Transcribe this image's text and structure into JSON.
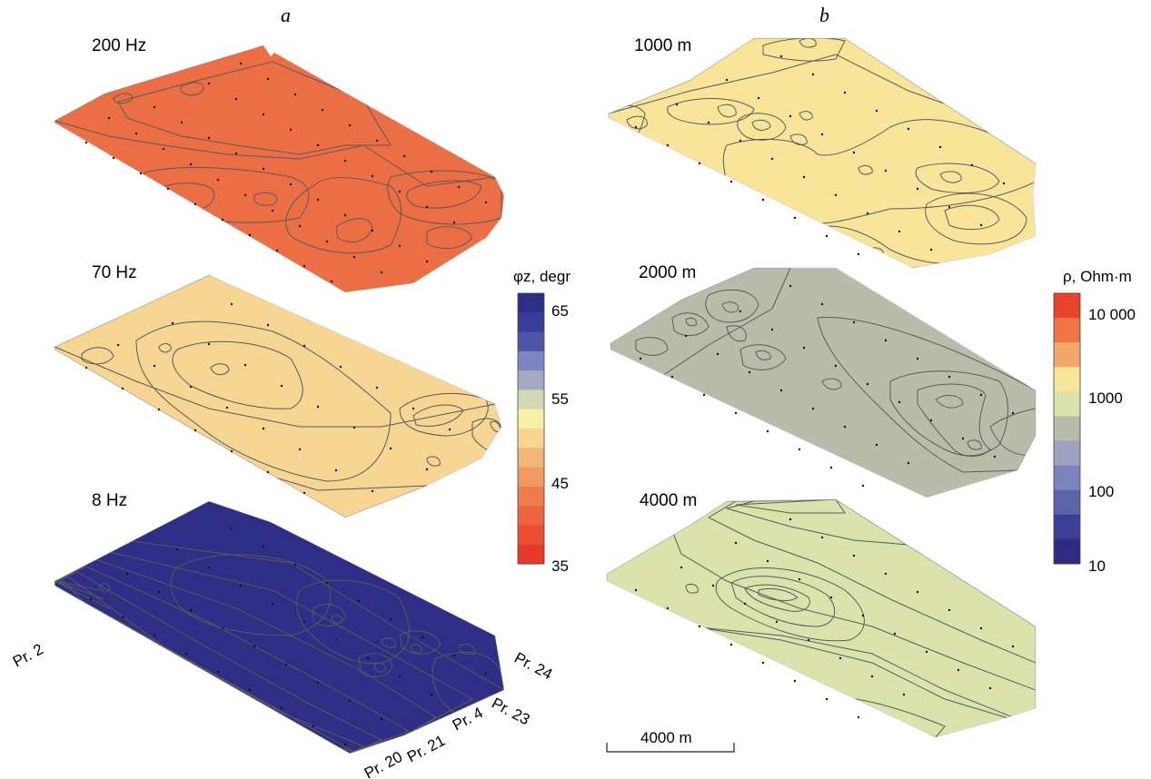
{
  "panels": {
    "a": {
      "letter": "a",
      "maps": [
        {
          "label": "200 Hz"
        },
        {
          "label": "70 Hz"
        },
        {
          "label": "8 Hz"
        }
      ],
      "profiles": [
        "Pr. 2",
        "Pr. 24",
        "Pr. 23",
        "Pr. 4",
        "Pr. 21",
        "Pr. 20"
      ],
      "colorbar": {
        "title": "φz, degr",
        "ticks": [
          "65",
          "55",
          "45",
          "35"
        ],
        "colors": [
          "#2f2e86",
          "#3a3c9a",
          "#4d57a8",
          "#7d86c2",
          "#a6a9c2",
          "#d3d9b4",
          "#f7f0a6",
          "#f7d592",
          "#f4b57a",
          "#f19a62",
          "#ee7d4e",
          "#ec6540",
          "#ea4d32",
          "#e83a2a"
        ]
      }
    },
    "b": {
      "letter": "b",
      "maps": [
        {
          "label": "1000 m"
        },
        {
          "label": "2000 m"
        },
        {
          "label": "4000 m"
        }
      ],
      "colorbar": {
        "title": "ρ, Ohm·m",
        "ticks": [
          "10 000",
          "1000",
          "100",
          "10"
        ],
        "colors": [
          "#e8432d",
          "#ef7447",
          "#f5a76a",
          "#f9e59a",
          "#dbe2ac",
          "#b9bcaa",
          "#9fa2bf",
          "#7b83bf",
          "#5b63a9",
          "#3c3f95",
          "#2e2b84"
        ]
      },
      "scale_bar": {
        "label": "4000 m"
      }
    }
  }
}
